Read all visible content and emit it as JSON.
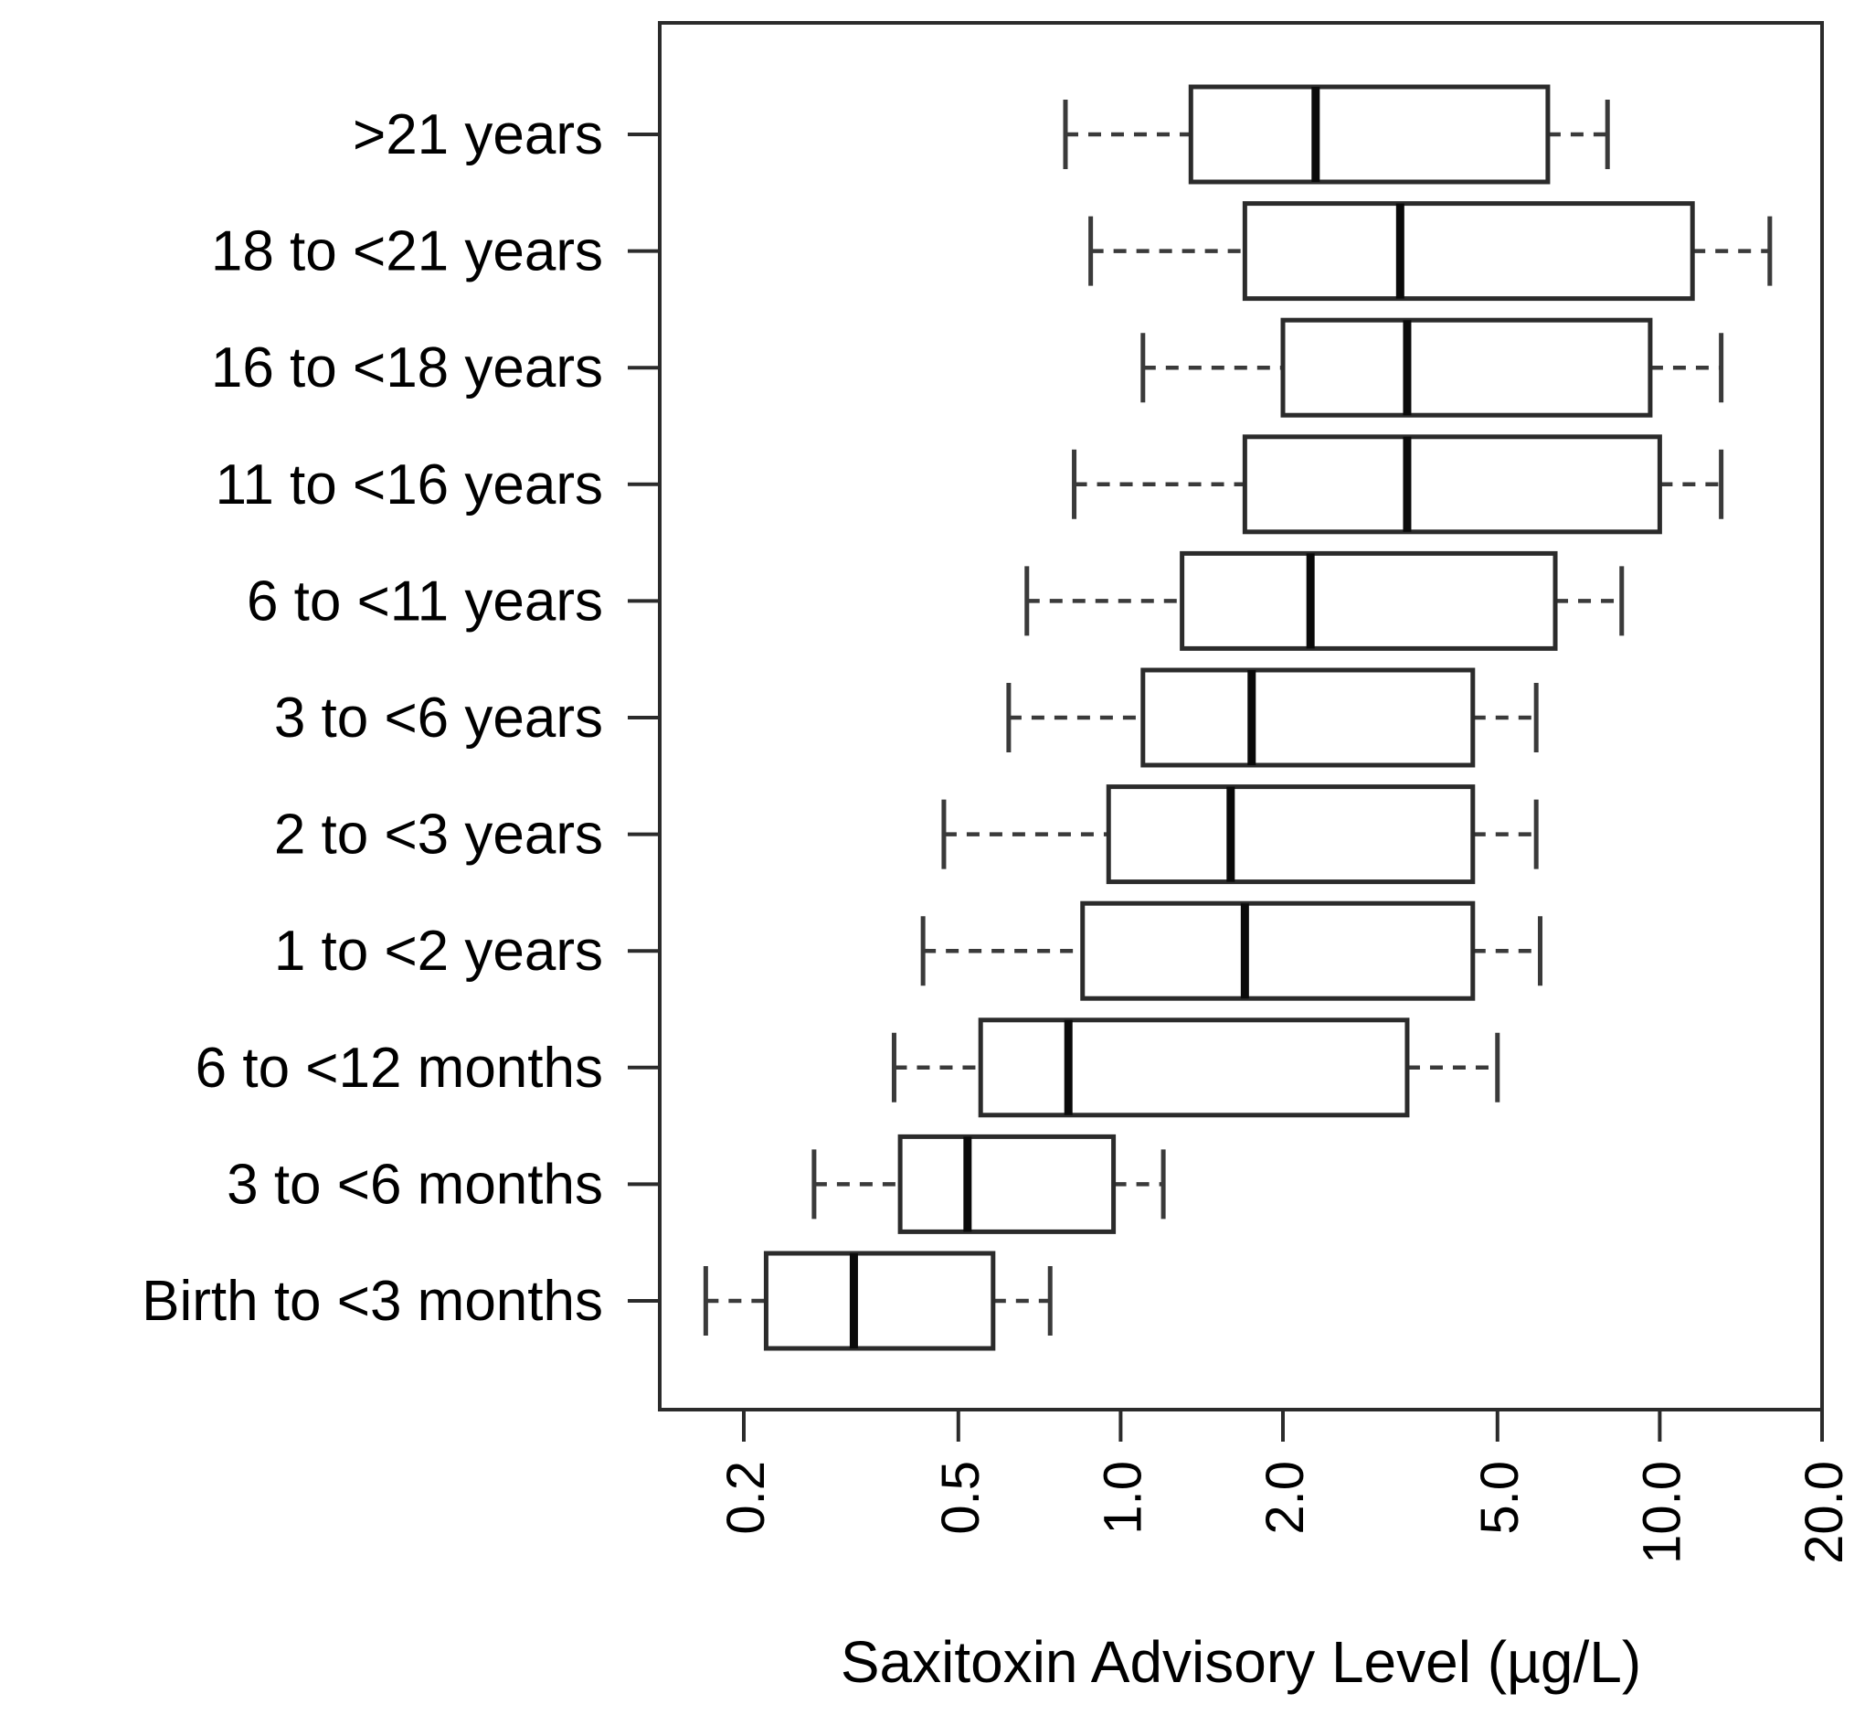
{
  "chart_data": {
    "type": "boxplot",
    "orientation": "horizontal",
    "title": "",
    "xlabel": "Saxitoxin Advisory Level (µg/L)",
    "ylabel": "",
    "x_scale": "log10",
    "x_range": [
      0.14,
      20.2
    ],
    "grid": false,
    "legend": null,
    "x_tick_labels": [
      "0.2",
      "0.5",
      "1.0",
      "2.0",
      "5.0",
      "10.0",
      "20.0"
    ],
    "x_tick_values": [
      0.2,
      0.5,
      1.0,
      2.0,
      5.0,
      10.0,
      20.0
    ],
    "categories": [
      ">21 years",
      "18 to <21 years",
      "16 to <18 years",
      "11 to <16 years",
      "6 to <11 years",
      "3 to <6 years",
      "2 to <3 years",
      "1 to <2 years",
      "6 to <12 months",
      "3 to <6 months",
      "Birth to <3 months"
    ],
    "groups": [
      {
        "label": ">21 years",
        "whisker_low": 0.79,
        "q1": 1.35,
        "median": 2.3,
        "q3": 6.2,
        "whisker_high": 8.0
      },
      {
        "label": "18 to <21 years",
        "whisker_low": 0.88,
        "q1": 1.7,
        "median": 3.3,
        "q3": 11.5,
        "whisker_high": 16.0
      },
      {
        "label": "16 to <18 years",
        "whisker_low": 1.1,
        "q1": 2.0,
        "median": 3.4,
        "q3": 9.6,
        "whisker_high": 13.0
      },
      {
        "label": "11 to <16 years",
        "whisker_low": 0.82,
        "q1": 1.7,
        "median": 3.4,
        "q3": 10.0,
        "whisker_high": 13.0
      },
      {
        "label": "6 to <11 years",
        "whisker_low": 0.67,
        "q1": 1.3,
        "median": 2.25,
        "q3": 6.4,
        "whisker_high": 8.5
      },
      {
        "label": "3 to <6 years",
        "whisker_low": 0.62,
        "q1": 1.1,
        "median": 1.75,
        "q3": 4.5,
        "whisker_high": 5.9
      },
      {
        "label": "2 to <3 years",
        "whisker_low": 0.47,
        "q1": 0.95,
        "median": 1.6,
        "q3": 4.5,
        "whisker_high": 5.9
      },
      {
        "label": "1 to <2 years",
        "whisker_low": 0.43,
        "q1": 0.85,
        "median": 1.7,
        "q3": 4.5,
        "whisker_high": 6.0
      },
      {
        "label": "6 to <12 months",
        "whisker_low": 0.38,
        "q1": 0.55,
        "median": 0.8,
        "q3": 3.4,
        "whisker_high": 5.0
      },
      {
        "label": "3 to <6 months",
        "whisker_low": 0.27,
        "q1": 0.39,
        "median": 0.52,
        "q3": 0.97,
        "whisker_high": 1.2
      },
      {
        "label": "Birth to <3 months",
        "whisker_low": 0.17,
        "q1": 0.22,
        "median": 0.32,
        "q3": 0.58,
        "whisker_high": 0.74
      }
    ],
    "colors": {
      "box_stroke": "#2b2b2b",
      "median": "#0a0a0a",
      "whisker": "#3a3a3a",
      "frame": "#2b2b2b",
      "background": "#ffffff",
      "text": "#000000"
    }
  }
}
